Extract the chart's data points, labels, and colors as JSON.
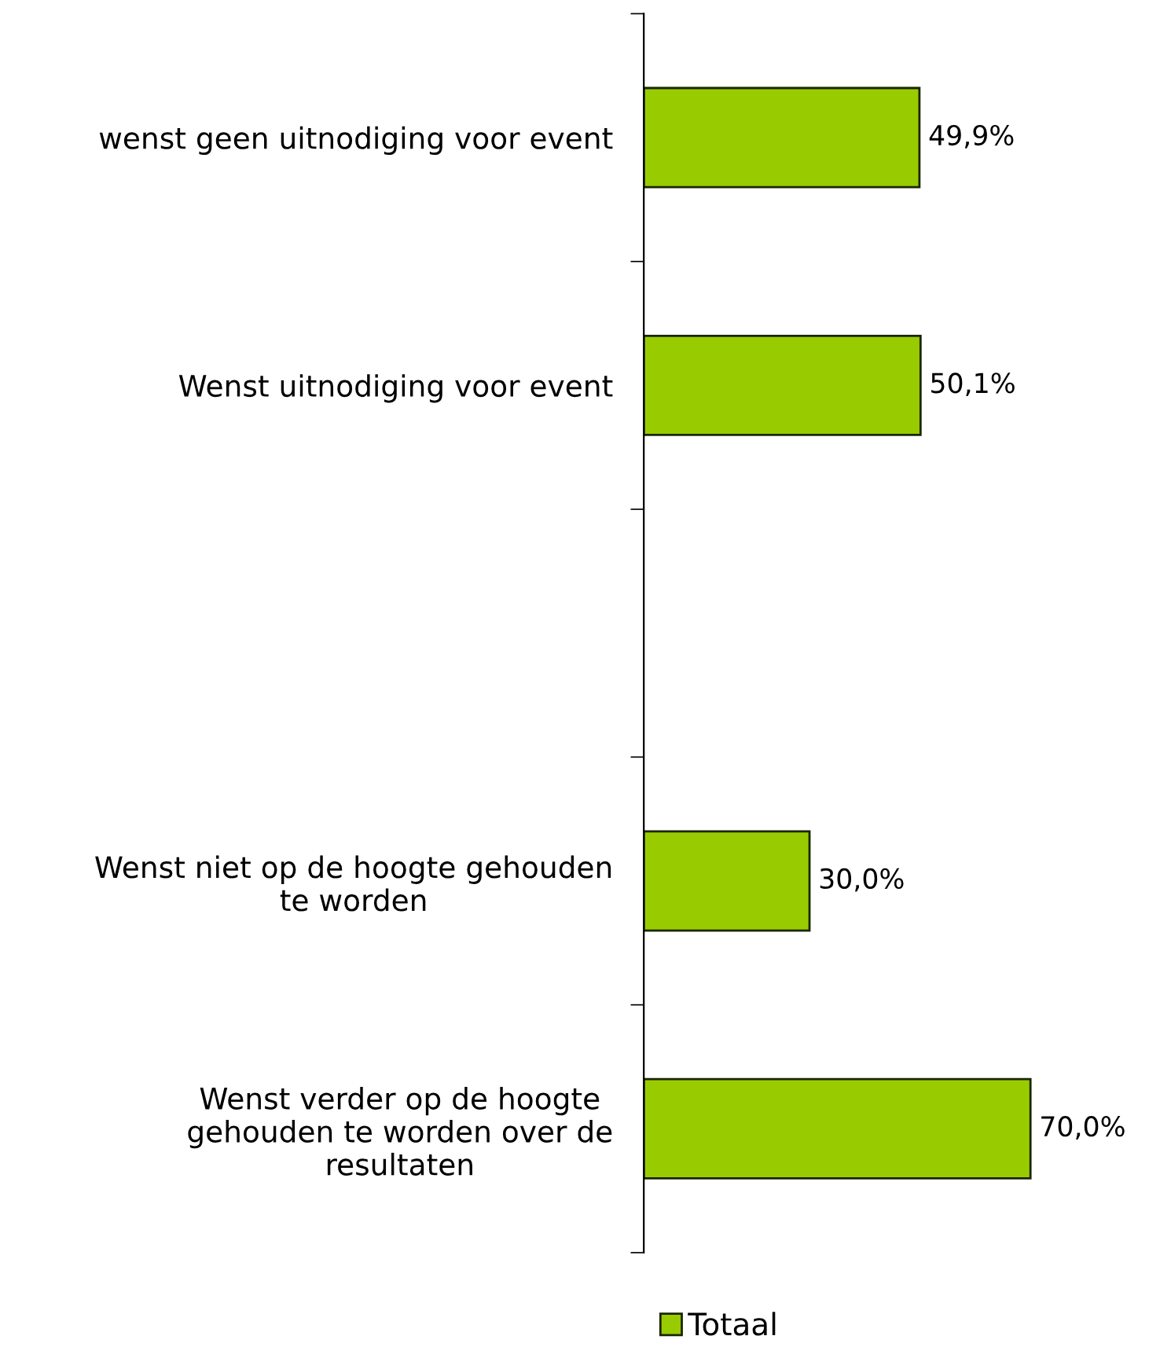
{
  "chart_data": {
    "type": "bar",
    "orientation": "horizontal",
    "categories": [
      "wenst geen uitnodiging voor event",
      "Wenst uitnodiging voor event",
      null,
      "Wenst niet op de hoogte gehouden\nte worden",
      "Wenst verder op de hoogte\ngehouden te worden over de\nresultaten"
    ],
    "series": [
      {
        "name": "Totaal",
        "color": "#99cc00",
        "values": [
          49.9,
          50.1,
          null,
          30.0,
          70.0
        ],
        "value_labels": [
          "49,9%",
          "50,1%",
          null,
          "30,0%",
          "70,0%"
        ]
      }
    ],
    "legend": "bottom",
    "grid": false
  }
}
